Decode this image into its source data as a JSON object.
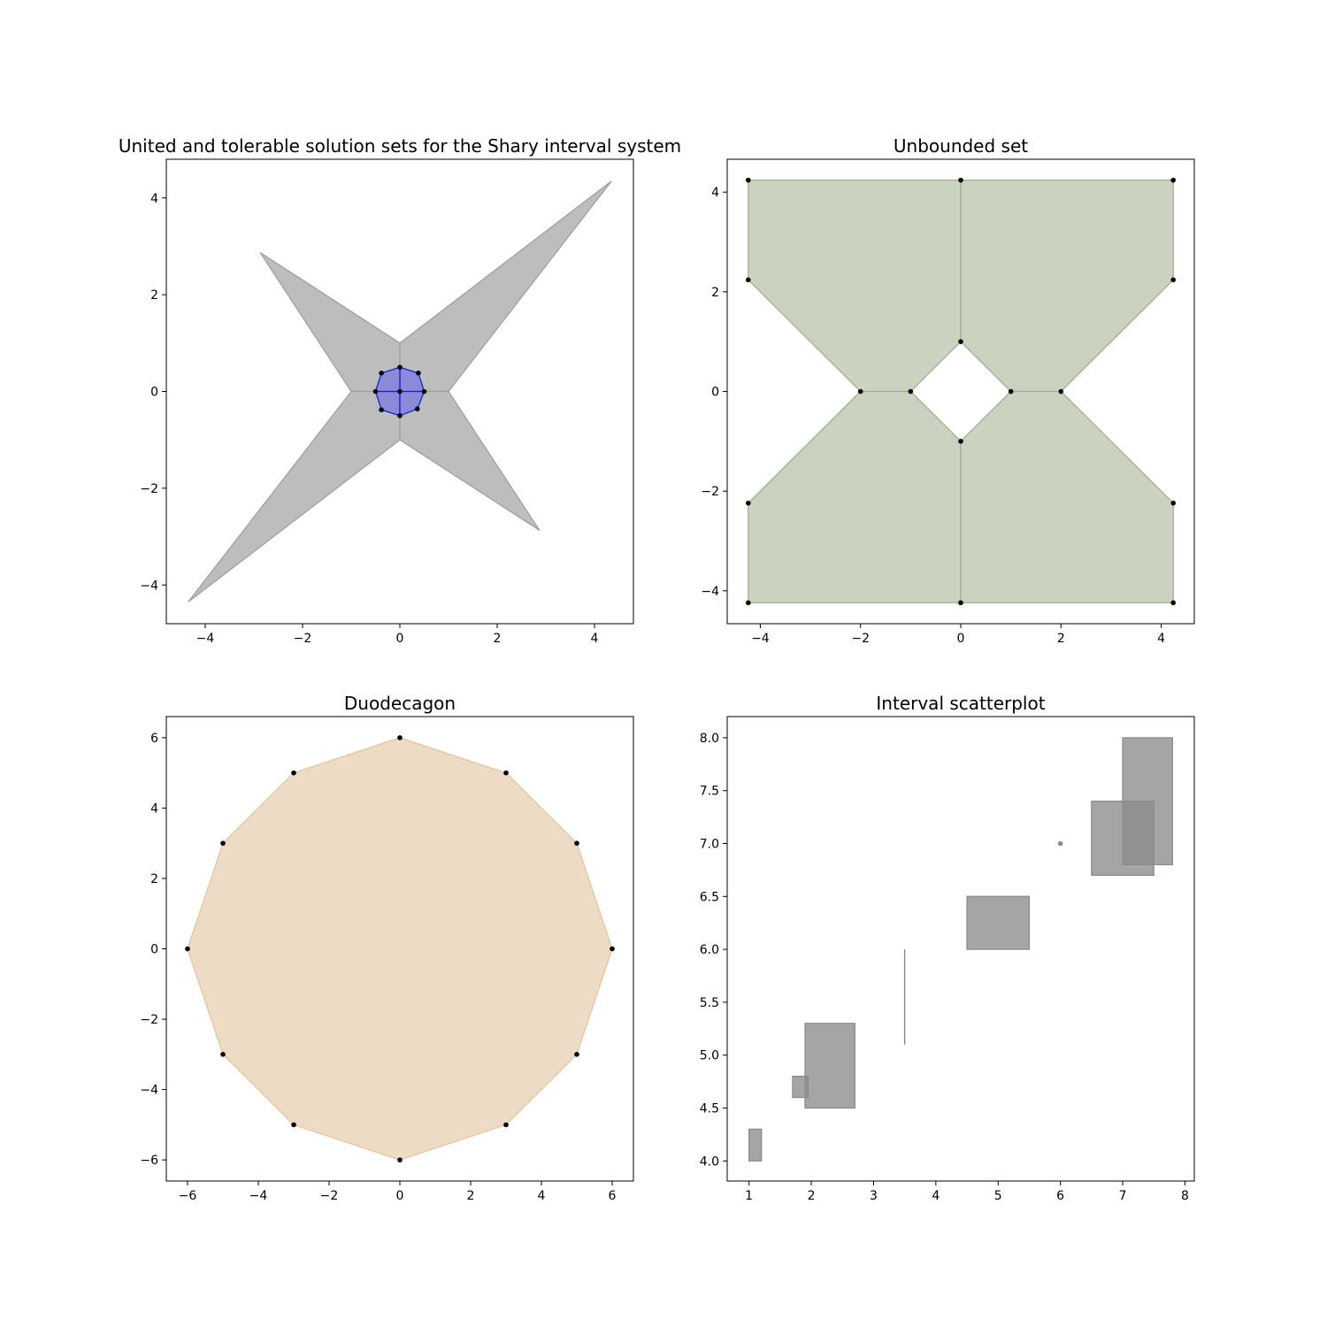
{
  "chart_data": [
    {
      "type": "polygon",
      "title": "United and tolerable solution sets for the Shary interval system",
      "xlim": [
        -4.8,
        4.8
      ],
      "ylim": [
        -4.8,
        4.8
      ],
      "xticks": [
        -4,
        -2,
        0,
        2,
        4
      ],
      "yticks": [
        -4,
        -2,
        0,
        2,
        4
      ],
      "tick_labels_x": [
        "−4",
        "−2",
        "0",
        "2",
        "4"
      ],
      "tick_labels_y": [
        "−4",
        "−2",
        "0",
        "2",
        "4"
      ],
      "series": [
        {
          "color": "#bdbdbd",
          "edge_color": "#a0a0a0",
          "polygons": [
            [
              [
                0,
                1
              ],
              [
                4.35,
                4.35
              ],
              [
                1,
                0
              ],
              [
                0,
                0
              ]
            ],
            [
              [
                0,
                1
              ],
              [
                -2.87,
                2.87
              ],
              [
                -1,
                0
              ],
              [
                0,
                0
              ]
            ],
            [
              [
                -1,
                0
              ],
              [
                -4.35,
                -4.35
              ],
              [
                0,
                -1
              ],
              [
                0,
                0
              ]
            ],
            [
              [
                1,
                0
              ],
              [
                2.87,
                -2.87
              ],
              [
                0,
                -1
              ],
              [
                0,
                0
              ]
            ]
          ],
          "points": []
        },
        {
          "color": "#8a8ad9",
          "edge_color": "#1f1fd0",
          "polygons": [
            [
              [
                0,
                0
              ],
              [
                0,
                0.5
              ],
              [
                0.38,
                0.38
              ],
              [
                0.5,
                0
              ]
            ],
            [
              [
                0,
                0
              ],
              [
                0,
                0.5
              ],
              [
                -0.38,
                0.38
              ],
              [
                -0.5,
                0
              ]
            ],
            [
              [
                0,
                0
              ],
              [
                -0.5,
                0
              ],
              [
                -0.38,
                -0.38
              ],
              [
                0,
                -0.5
              ]
            ],
            [
              [
                0,
                0
              ],
              [
                0.5,
                0
              ],
              [
                0.36,
                -0.36
              ],
              [
                0,
                -0.5
              ]
            ]
          ],
          "points": [
            [
              0,
              0
            ],
            [
              0,
              0.5
            ],
            [
              0.38,
              0.38
            ],
            [
              0.5,
              0
            ],
            [
              -0.38,
              0.38
            ],
            [
              -0.5,
              0
            ],
            [
              -0.38,
              -0.38
            ],
            [
              0,
              -0.5
            ],
            [
              0.36,
              -0.36
            ]
          ]
        }
      ]
    },
    {
      "type": "polygon",
      "title": "Unbounded set",
      "xlim": [
        -4.66,
        4.66
      ],
      "ylim": [
        -4.66,
        4.66
      ],
      "xticks": [
        -4,
        -2,
        0,
        2,
        4
      ],
      "yticks": [
        -4,
        -2,
        0,
        2,
        4
      ],
      "tick_labels_x": [
        "−4",
        "−2",
        "0",
        "2",
        "4"
      ],
      "tick_labels_y": [
        "−4",
        "−2",
        "0",
        "2",
        "4"
      ],
      "series": [
        {
          "color": "#cbd3c0",
          "edge_color": "#a3ae94",
          "polygons": [
            [
              [
                0,
                1
              ],
              [
                0,
                4.24
              ],
              [
                -4.24,
                4.24
              ],
              [
                -4.24,
                2.24
              ],
              [
                -2,
                0
              ],
              [
                -1,
                0
              ]
            ],
            [
              [
                0,
                1
              ],
              [
                0,
                4.24
              ],
              [
                4.24,
                4.24
              ],
              [
                4.24,
                2.24
              ],
              [
                2,
                0
              ],
              [
                1,
                0
              ]
            ],
            [
              [
                -1,
                0
              ],
              [
                -2,
                0
              ],
              [
                -4.24,
                -2.24
              ],
              [
                -4.24,
                -4.24
              ],
              [
                0,
                -4.24
              ],
              [
                0,
                -1
              ]
            ],
            [
              [
                1,
                0
              ],
              [
                2,
                0
              ],
              [
                4.24,
                -2.24
              ],
              [
                4.24,
                -4.24
              ],
              [
                0,
                -4.24
              ],
              [
                0,
                -1
              ]
            ]
          ],
          "points": [
            [
              0,
              1
            ],
            [
              0,
              4.24
            ],
            [
              -4.24,
              4.24
            ],
            [
              -4.24,
              2.24
            ],
            [
              -2,
              0
            ],
            [
              -1,
              0
            ],
            [
              4.24,
              4.24
            ],
            [
              4.24,
              2.24
            ],
            [
              2,
              0
            ],
            [
              1,
              0
            ],
            [
              -4.24,
              -2.24
            ],
            [
              -4.24,
              -4.24
            ],
            [
              0,
              -4.24
            ],
            [
              0,
              -1
            ],
            [
              4.24,
              -2.24
            ],
            [
              4.24,
              -4.24
            ]
          ]
        }
      ]
    },
    {
      "type": "polygon",
      "title": "Duodecagon",
      "xlim": [
        -6.6,
        6.6
      ],
      "ylim": [
        -6.6,
        6.6
      ],
      "xticks": [
        -6,
        -4,
        -2,
        0,
        2,
        4,
        6
      ],
      "yticks": [
        -6,
        -4,
        -2,
        0,
        2,
        4,
        6
      ],
      "tick_labels_x": [
        "−6",
        "−4",
        "−2",
        "0",
        "2",
        "4",
        "6"
      ],
      "tick_labels_y": [
        "−6",
        "−4",
        "−2",
        "0",
        "2",
        "4",
        "6"
      ],
      "series": [
        {
          "color": "#eedbc5",
          "edge_color": "#e6c4a0",
          "polygons": [
            [
              [
                0,
                6
              ],
              [
                3,
                5
              ],
              [
                5,
                3
              ],
              [
                6,
                0
              ],
              [
                5,
                -3
              ],
              [
                3,
                -5
              ],
              [
                0,
                -6
              ],
              [
                -3,
                -5
              ],
              [
                -5,
                -3
              ],
              [
                -6,
                0
              ],
              [
                -5,
                3
              ],
              [
                -3,
                5
              ]
            ]
          ],
          "points": [
            [
              0,
              6
            ],
            [
              3,
              5
            ],
            [
              5,
              3
            ],
            [
              6,
              0
            ],
            [
              5,
              -3
            ],
            [
              3,
              -5
            ],
            [
              0,
              -6
            ],
            [
              -3,
              -5
            ],
            [
              -5,
              -3
            ],
            [
              -6,
              0
            ],
            [
              -5,
              3
            ],
            [
              -3,
              5
            ]
          ]
        }
      ]
    },
    {
      "type": "interval-scatter",
      "title": "Interval scatterplot",
      "xlim": [
        0.65,
        8.15
      ],
      "ylim": [
        3.81,
        8.2
      ],
      "xticks": [
        1,
        2,
        3,
        4,
        5,
        6,
        7,
        8
      ],
      "yticks": [
        4.0,
        4.5,
        5.0,
        5.5,
        6.0,
        6.5,
        7.0,
        7.5,
        8.0
      ],
      "tick_labels_x": [
        "1",
        "2",
        "3",
        "4",
        "5",
        "6",
        "7",
        "8"
      ],
      "tick_labels_y": [
        "4.0",
        "4.5",
        "5.0",
        "5.5",
        "6.0",
        "6.5",
        "7.0",
        "7.5",
        "8.0"
      ],
      "color": "#8c8c8c",
      "intervals": [
        {
          "x": [
            1.0,
            1.2
          ],
          "y": [
            4.0,
            4.3
          ]
        },
        {
          "x": [
            1.7,
            1.95
          ],
          "y": [
            4.6,
            4.8
          ]
        },
        {
          "x": [
            1.9,
            2.7
          ],
          "y": [
            4.5,
            5.3
          ]
        },
        {
          "x": [
            3.5,
            3.5
          ],
          "y": [
            5.1,
            6.0
          ]
        },
        {
          "x": [
            4.5,
            5.5
          ],
          "y": [
            6.0,
            6.5
          ]
        },
        {
          "x": [
            6.0,
            6.0
          ],
          "y": [
            7.0,
            7.0
          ]
        },
        {
          "x": [
            6.5,
            7.5
          ],
          "y": [
            6.7,
            7.4
          ]
        },
        {
          "x": [
            7.0,
            7.8
          ],
          "y": [
            6.8,
            8.0
          ]
        }
      ]
    }
  ]
}
